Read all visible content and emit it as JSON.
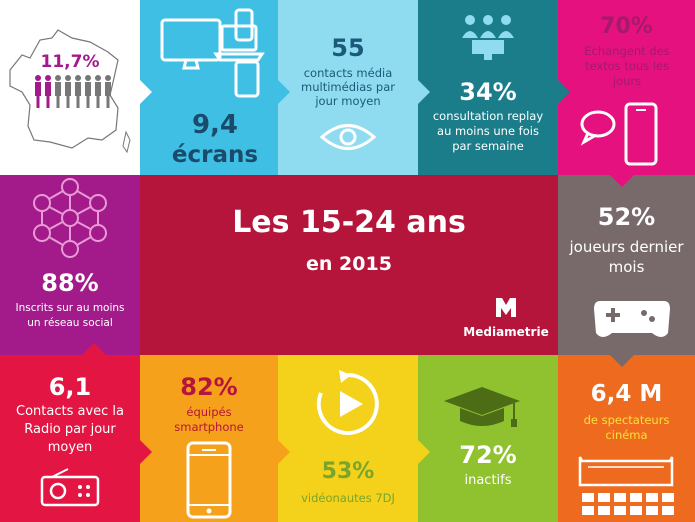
{
  "colors": {
    "white": "#ffffff",
    "cyan": "#3fbfe3",
    "light_cyan": "#8fdcf0",
    "teal": "#1b7c8a",
    "magenta": "#e5117e",
    "purple": "#a31b8a",
    "crimson": "#b5153a",
    "gray": "#786a6a",
    "red": "#e31542",
    "orange": "#f6a11c",
    "yellow": "#f4d11b",
    "green": "#8fc22e",
    "dark_orange": "#ee6a1e"
  },
  "france": {
    "pct": "11,7%"
  },
  "screens": {
    "value": "9,4",
    "label": "écrans",
    "icon": "devices-icon"
  },
  "media": {
    "value": "55",
    "label": "contacts média multimédias par jour moyen",
    "icon": "eye-icon"
  },
  "replay": {
    "value": "34%",
    "label": "consultation replay au moins une fois par semaine",
    "icon": "audience-icon"
  },
  "texts": {
    "value": "70%",
    "label": "Echangent des textos tous les jours",
    "icon": "phone-message-icon"
  },
  "social": {
    "value": "88%",
    "label": "Inscrits sur au moins un réseau social",
    "icon": "network-icon"
  },
  "center": {
    "title": "Les 15-24 ans",
    "subtitle": "en 2015",
    "brand": "Mediametrie"
  },
  "gamers": {
    "value": "52%",
    "label": "joueurs dernier mois",
    "icon": "gamepad-icon"
  },
  "radio": {
    "value": "6,1",
    "label": "Contacts avec la Radio par jour moyen",
    "icon": "radio-icon"
  },
  "smartphone": {
    "value": "82%",
    "label": "équipés smartphone",
    "icon": "smartphone-icon"
  },
  "video": {
    "value": "53%",
    "label": "vidéonautes 7DJ",
    "icon": "replay-play-icon"
  },
  "inactive": {
    "value": "72%",
    "label": "inactifs",
    "icon": "graduation-cap-icon"
  },
  "cinema": {
    "value": "6,4 M",
    "label": "de spectateurs cinéma",
    "icon": "cinema-icon"
  }
}
